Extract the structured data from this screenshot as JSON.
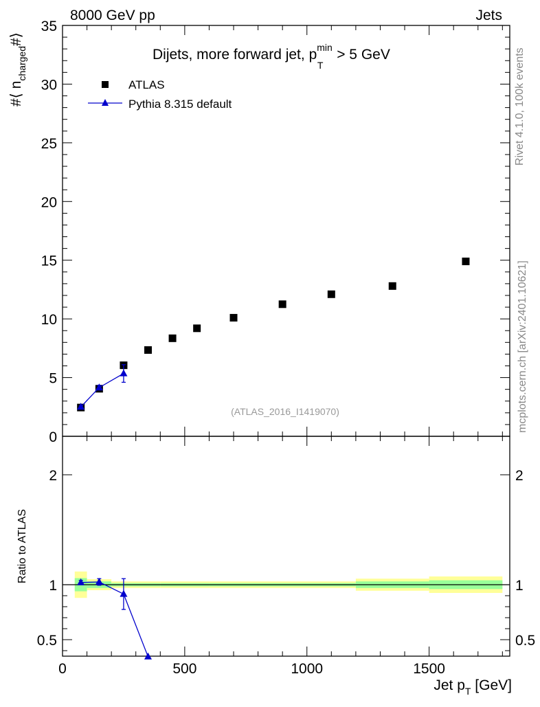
{
  "header": {
    "left": "8000 GeV pp",
    "right": "Jets"
  },
  "side": {
    "rivet": "Rivet 4.1.0,  100k events",
    "mcplots": "mcplots.cern.ch [arXiv:2401.10621]"
  },
  "chart_data": [
    {
      "type": "scatter",
      "title": "Dijets, more forward jet, p",
      "title_sup": "min",
      "title_sub": "T",
      "title_suffix": " > 5 GeV",
      "ylabel": {
        "prefix": "#⟨ n",
        "sub": "charged",
        "suffix": "#⟩"
      },
      "watermark": "(ATLAS_2016_I1419070)",
      "xlim": [
        0,
        1830
      ],
      "ylim": [
        0,
        35
      ],
      "yticks": [
        {
          "value": 0,
          "label": "0"
        },
        {
          "value": 5,
          "label": "5"
        },
        {
          "value": 10,
          "label": "10"
        },
        {
          "value": 15,
          "label": "15"
        },
        {
          "value": 20,
          "label": "20"
        },
        {
          "value": 25,
          "label": "25"
        },
        {
          "value": 30,
          "label": "30"
        },
        {
          "value": 35,
          "label": "35"
        }
      ],
      "legend": {
        "placement": "top-left",
        "entries": [
          {
            "label": "ATLAS",
            "marker": "square",
            "color": "#000000"
          },
          {
            "label": "Pythia 8.315 default",
            "marker": "triangle",
            "color": "#0000cc"
          }
        ]
      },
      "series": [
        {
          "name": "ATLAS",
          "color": "#000000",
          "x": [
            75,
            150,
            250,
            350,
            450,
            550,
            700,
            900,
            1100,
            1350,
            1650
          ],
          "xlow": [
            50,
            100,
            200,
            300,
            400,
            500,
            600,
            800,
            1000,
            1200,
            1500
          ],
          "xhigh": [
            100,
            200,
            300,
            400,
            500,
            600,
            800,
            1000,
            1200,
            1500,
            1800
          ],
          "values": [
            2.45,
            4.05,
            6.05,
            7.35,
            8.35,
            9.2,
            10.1,
            11.25,
            12.1,
            12.8,
            14.9
          ]
        },
        {
          "name": "Pythia 8.315 default",
          "color": "#0000cc",
          "x": [
            75,
            150,
            250
          ],
          "values": [
            2.5,
            4.15,
            5.35
          ],
          "err": [
            0.1,
            0.2,
            0.75
          ]
        }
      ]
    },
    {
      "type": "scatter",
      "ylabel": "Ratio to ATLAS",
      "xlabel": {
        "prefix": "Jet p",
        "sub": "T",
        "suffix": " [GeV]"
      },
      "xlim": [
        0,
        1830
      ],
      "ylim": [
        0.35,
        2.35
      ],
      "reference": 1.0,
      "xticks": [
        {
          "value": 0,
          "label": "0"
        },
        {
          "value": 500,
          "label": "500"
        },
        {
          "value": 1000,
          "label": "1000"
        },
        {
          "value": 1500,
          "label": "1500"
        }
      ],
      "yticks": [
        {
          "value": 0.5,
          "label": "0.5"
        },
        {
          "value": 1,
          "label": "1"
        },
        {
          "value": 2,
          "label": "2"
        }
      ],
      "bands": [
        {
          "xlow": 50,
          "xhigh": 100,
          "inner": [
            0.94,
            1.06
          ],
          "outer": [
            0.88,
            1.12
          ]
        },
        {
          "xlow": 100,
          "xhigh": 200,
          "inner": [
            0.97,
            1.03
          ],
          "outer": [
            0.95,
            1.05
          ]
        },
        {
          "xlow": 200,
          "xhigh": 400,
          "inner": [
            0.985,
            1.015
          ],
          "outer": [
            0.97,
            1.03
          ]
        },
        {
          "xlow": 400,
          "xhigh": 600,
          "inner": [
            0.985,
            1.015
          ],
          "outer": [
            0.97,
            1.03
          ]
        },
        {
          "xlow": 600,
          "xhigh": 1200,
          "inner": [
            0.985,
            1.015
          ],
          "outer": [
            0.97,
            1.03
          ]
        },
        {
          "xlow": 1200,
          "xhigh": 1500,
          "inner": [
            0.97,
            1.03
          ],
          "outer": [
            0.945,
            1.055
          ]
        },
        {
          "xlow": 1500,
          "xhigh": 1800,
          "inner": [
            0.96,
            1.04
          ],
          "outer": [
            0.925,
            1.075
          ]
        }
      ],
      "series": [
        {
          "name": "Pythia 8.315 default",
          "color": "#0000cc",
          "x": [
            75,
            150,
            250,
            350
          ],
          "values": [
            1.02,
            1.025,
            0.915,
            0.345
          ],
          "err": [
            0.02,
            0.03,
            0.14,
            0
          ]
        }
      ]
    }
  ]
}
